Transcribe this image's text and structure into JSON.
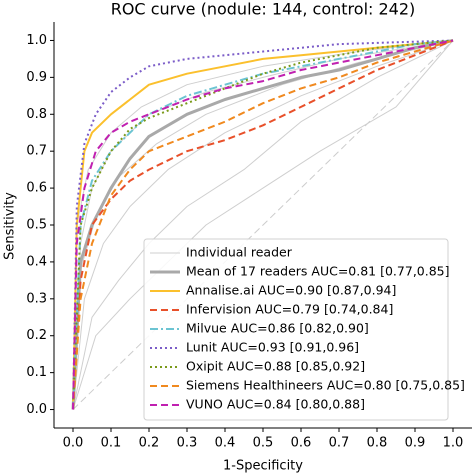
{
  "chart_data": {
    "type": "line",
    "title": "ROC curve (nodule: 144, control: 242)",
    "x_label": "1-Specificity",
    "y_label": "Sensitivity",
    "xlim": [
      -0.05,
      1.05
    ],
    "ylim": [
      -0.05,
      1.05
    ],
    "xticks": [
      {
        "value": 0,
        "label": "0.0"
      },
      0.1,
      0.2,
      0.3,
      0.4,
      0.5,
      0.6,
      0.7,
      0.8,
      0.9,
      {
        "value": 1,
        "label": "1.0"
      }
    ],
    "yticks": [
      {
        "value": 0,
        "label": "0.0"
      },
      0.1,
      0.2,
      0.3,
      0.4,
      0.5,
      0.6,
      0.7,
      0.8,
      0.9,
      {
        "value": 1,
        "label": "1.0"
      }
    ],
    "diagonal": {
      "x": [
        0,
        1
      ],
      "values": [
        0,
        1
      ],
      "color": "#cccccc"
    },
    "legend": "lower right",
    "series": [
      {
        "name": "Individual reader",
        "color": "#cfcfcf",
        "width": 1,
        "dash": "solid",
        "lines": [
          {
            "x": [
              0,
              0.03,
              0.08,
              0.15,
              0.25,
              0.4,
              0.6,
              0.8,
              1
            ],
            "values": [
              0,
              0.3,
              0.45,
              0.55,
              0.65,
              0.75,
              0.85,
              0.93,
              1
            ]
          },
          {
            "x": [
              0,
              0.02,
              0.05,
              0.1,
              0.2,
              0.35,
              0.5,
              0.7,
              1
            ],
            "values": [
              0,
              0.45,
              0.6,
              0.7,
              0.8,
              0.86,
              0.9,
              0.95,
              1
            ]
          },
          {
            "x": [
              0,
              0.05,
              0.12,
              0.2,
              0.3,
              0.45,
              0.6,
              0.8,
              1
            ],
            "values": [
              0,
              0.25,
              0.35,
              0.45,
              0.55,
              0.65,
              0.78,
              0.9,
              1
            ]
          },
          {
            "x": [
              0,
              0.01,
              0.04,
              0.1,
              0.18,
              0.3,
              0.5,
              0.75,
              1
            ],
            "values": [
              0,
              0.5,
              0.65,
              0.75,
              0.82,
              0.88,
              0.93,
              0.97,
              1
            ]
          },
          {
            "x": [
              0,
              0.06,
              0.15,
              0.25,
              0.35,
              0.5,
              0.65,
              0.85,
              1
            ],
            "values": [
              0,
              0.2,
              0.3,
              0.4,
              0.5,
              0.6,
              0.7,
              0.82,
              1
            ]
          },
          {
            "x": [
              0,
              0.02,
              0.06,
              0.12,
              0.22,
              0.35,
              0.55,
              0.75,
              1
            ],
            "values": [
              0,
              0.38,
              0.52,
              0.63,
              0.72,
              0.8,
              0.88,
              0.94,
              1
            ]
          }
        ]
      },
      {
        "name": "Mean of 17 readers AUC=0.81 [0.77,0.85]",
        "color": "#a9a9a9",
        "width": 3,
        "dash": "solid",
        "x": [
          0,
          0.02,
          0.05,
          0.1,
          0.15,
          0.2,
          0.3,
          0.4,
          0.5,
          0.6,
          0.7,
          0.8,
          0.9,
          1
        ],
        "values": [
          0,
          0.4,
          0.5,
          0.6,
          0.68,
          0.74,
          0.8,
          0.84,
          0.87,
          0.9,
          0.92,
          0.95,
          0.98,
          1
        ]
      },
      {
        "name": "Annalise.ai AUC=0.90 [0.87,0.94]",
        "color": "#fbc02d",
        "width": 2,
        "dash": "solid",
        "x": [
          0,
          0.01,
          0.03,
          0.05,
          0.1,
          0.15,
          0.2,
          0.3,
          0.4,
          0.5,
          0.6,
          0.7,
          0.8,
          0.9,
          1
        ],
        "values": [
          0,
          0.5,
          0.7,
          0.75,
          0.8,
          0.84,
          0.88,
          0.91,
          0.93,
          0.95,
          0.96,
          0.97,
          0.98,
          0.99,
          1
        ]
      },
      {
        "name": "Infervision AUC=0.79 [0.74,0.84]",
        "color": "#e8502a",
        "width": 2,
        "dash": "dashed",
        "x": [
          0,
          0.02,
          0.05,
          0.1,
          0.15,
          0.2,
          0.3,
          0.4,
          0.5,
          0.6,
          0.7,
          0.8,
          0.9,
          1
        ],
        "values": [
          0,
          0.35,
          0.5,
          0.57,
          0.62,
          0.65,
          0.7,
          0.73,
          0.77,
          0.82,
          0.87,
          0.92,
          0.96,
          1
        ]
      },
      {
        "name": "Milvue AUC=0.86 [0.82,0.90]",
        "color": "#6cc4d2",
        "width": 2,
        "dash": "dashdot",
        "x": [
          0,
          0.02,
          0.05,
          0.1,
          0.15,
          0.2,
          0.3,
          0.4,
          0.5,
          0.6,
          0.7,
          0.8,
          0.9,
          1
        ],
        "values": [
          0,
          0.5,
          0.62,
          0.7,
          0.75,
          0.8,
          0.85,
          0.88,
          0.91,
          0.93,
          0.95,
          0.97,
          0.99,
          1
        ]
      },
      {
        "name": "Lunit AUC=0.93 [0.91,0.96]",
        "color": "#7b5cc8",
        "width": 2,
        "dash": "dotted",
        "x": [
          0,
          0.01,
          0.03,
          0.06,
          0.1,
          0.15,
          0.2,
          0.3,
          0.5,
          0.7,
          1
        ],
        "values": [
          0,
          0.55,
          0.72,
          0.8,
          0.86,
          0.9,
          0.93,
          0.95,
          0.97,
          0.99,
          1
        ]
      },
      {
        "name": "Oxipit AUC=0.88 [0.85,0.92]",
        "color": "#7a9a1a",
        "width": 2,
        "dash": "dotted",
        "x": [
          0,
          0.02,
          0.05,
          0.1,
          0.15,
          0.2,
          0.3,
          0.4,
          0.5,
          0.6,
          0.7,
          0.8,
          1
        ],
        "values": [
          0,
          0.5,
          0.6,
          0.7,
          0.76,
          0.79,
          0.83,
          0.87,
          0.91,
          0.94,
          0.96,
          0.98,
          1
        ]
      },
      {
        "name": "Siemens Healthineers AUC=0.80 [0.75,0.85]",
        "color": "#f0891f",
        "width": 2,
        "dash": "dashed",
        "x": [
          0,
          0.02,
          0.05,
          0.1,
          0.15,
          0.2,
          0.3,
          0.4,
          0.5,
          0.6,
          0.7,
          0.8,
          0.9,
          1
        ],
        "values": [
          0,
          0.3,
          0.45,
          0.58,
          0.65,
          0.7,
          0.74,
          0.78,
          0.83,
          0.87,
          0.9,
          0.94,
          0.97,
          1
        ]
      },
      {
        "name": "VUNO AUC=0.84 [0.80,0.88]",
        "color": "#c020b0",
        "width": 2,
        "dash": "dashed",
        "x": [
          0,
          0.01,
          0.03,
          0.06,
          0.1,
          0.15,
          0.2,
          0.3,
          0.4,
          0.5,
          0.6,
          0.7,
          0.8,
          0.9,
          1
        ],
        "values": [
          0,
          0.45,
          0.6,
          0.7,
          0.75,
          0.78,
          0.8,
          0.84,
          0.87,
          0.89,
          0.92,
          0.94,
          0.96,
          0.98,
          1
        ]
      }
    ]
  }
}
